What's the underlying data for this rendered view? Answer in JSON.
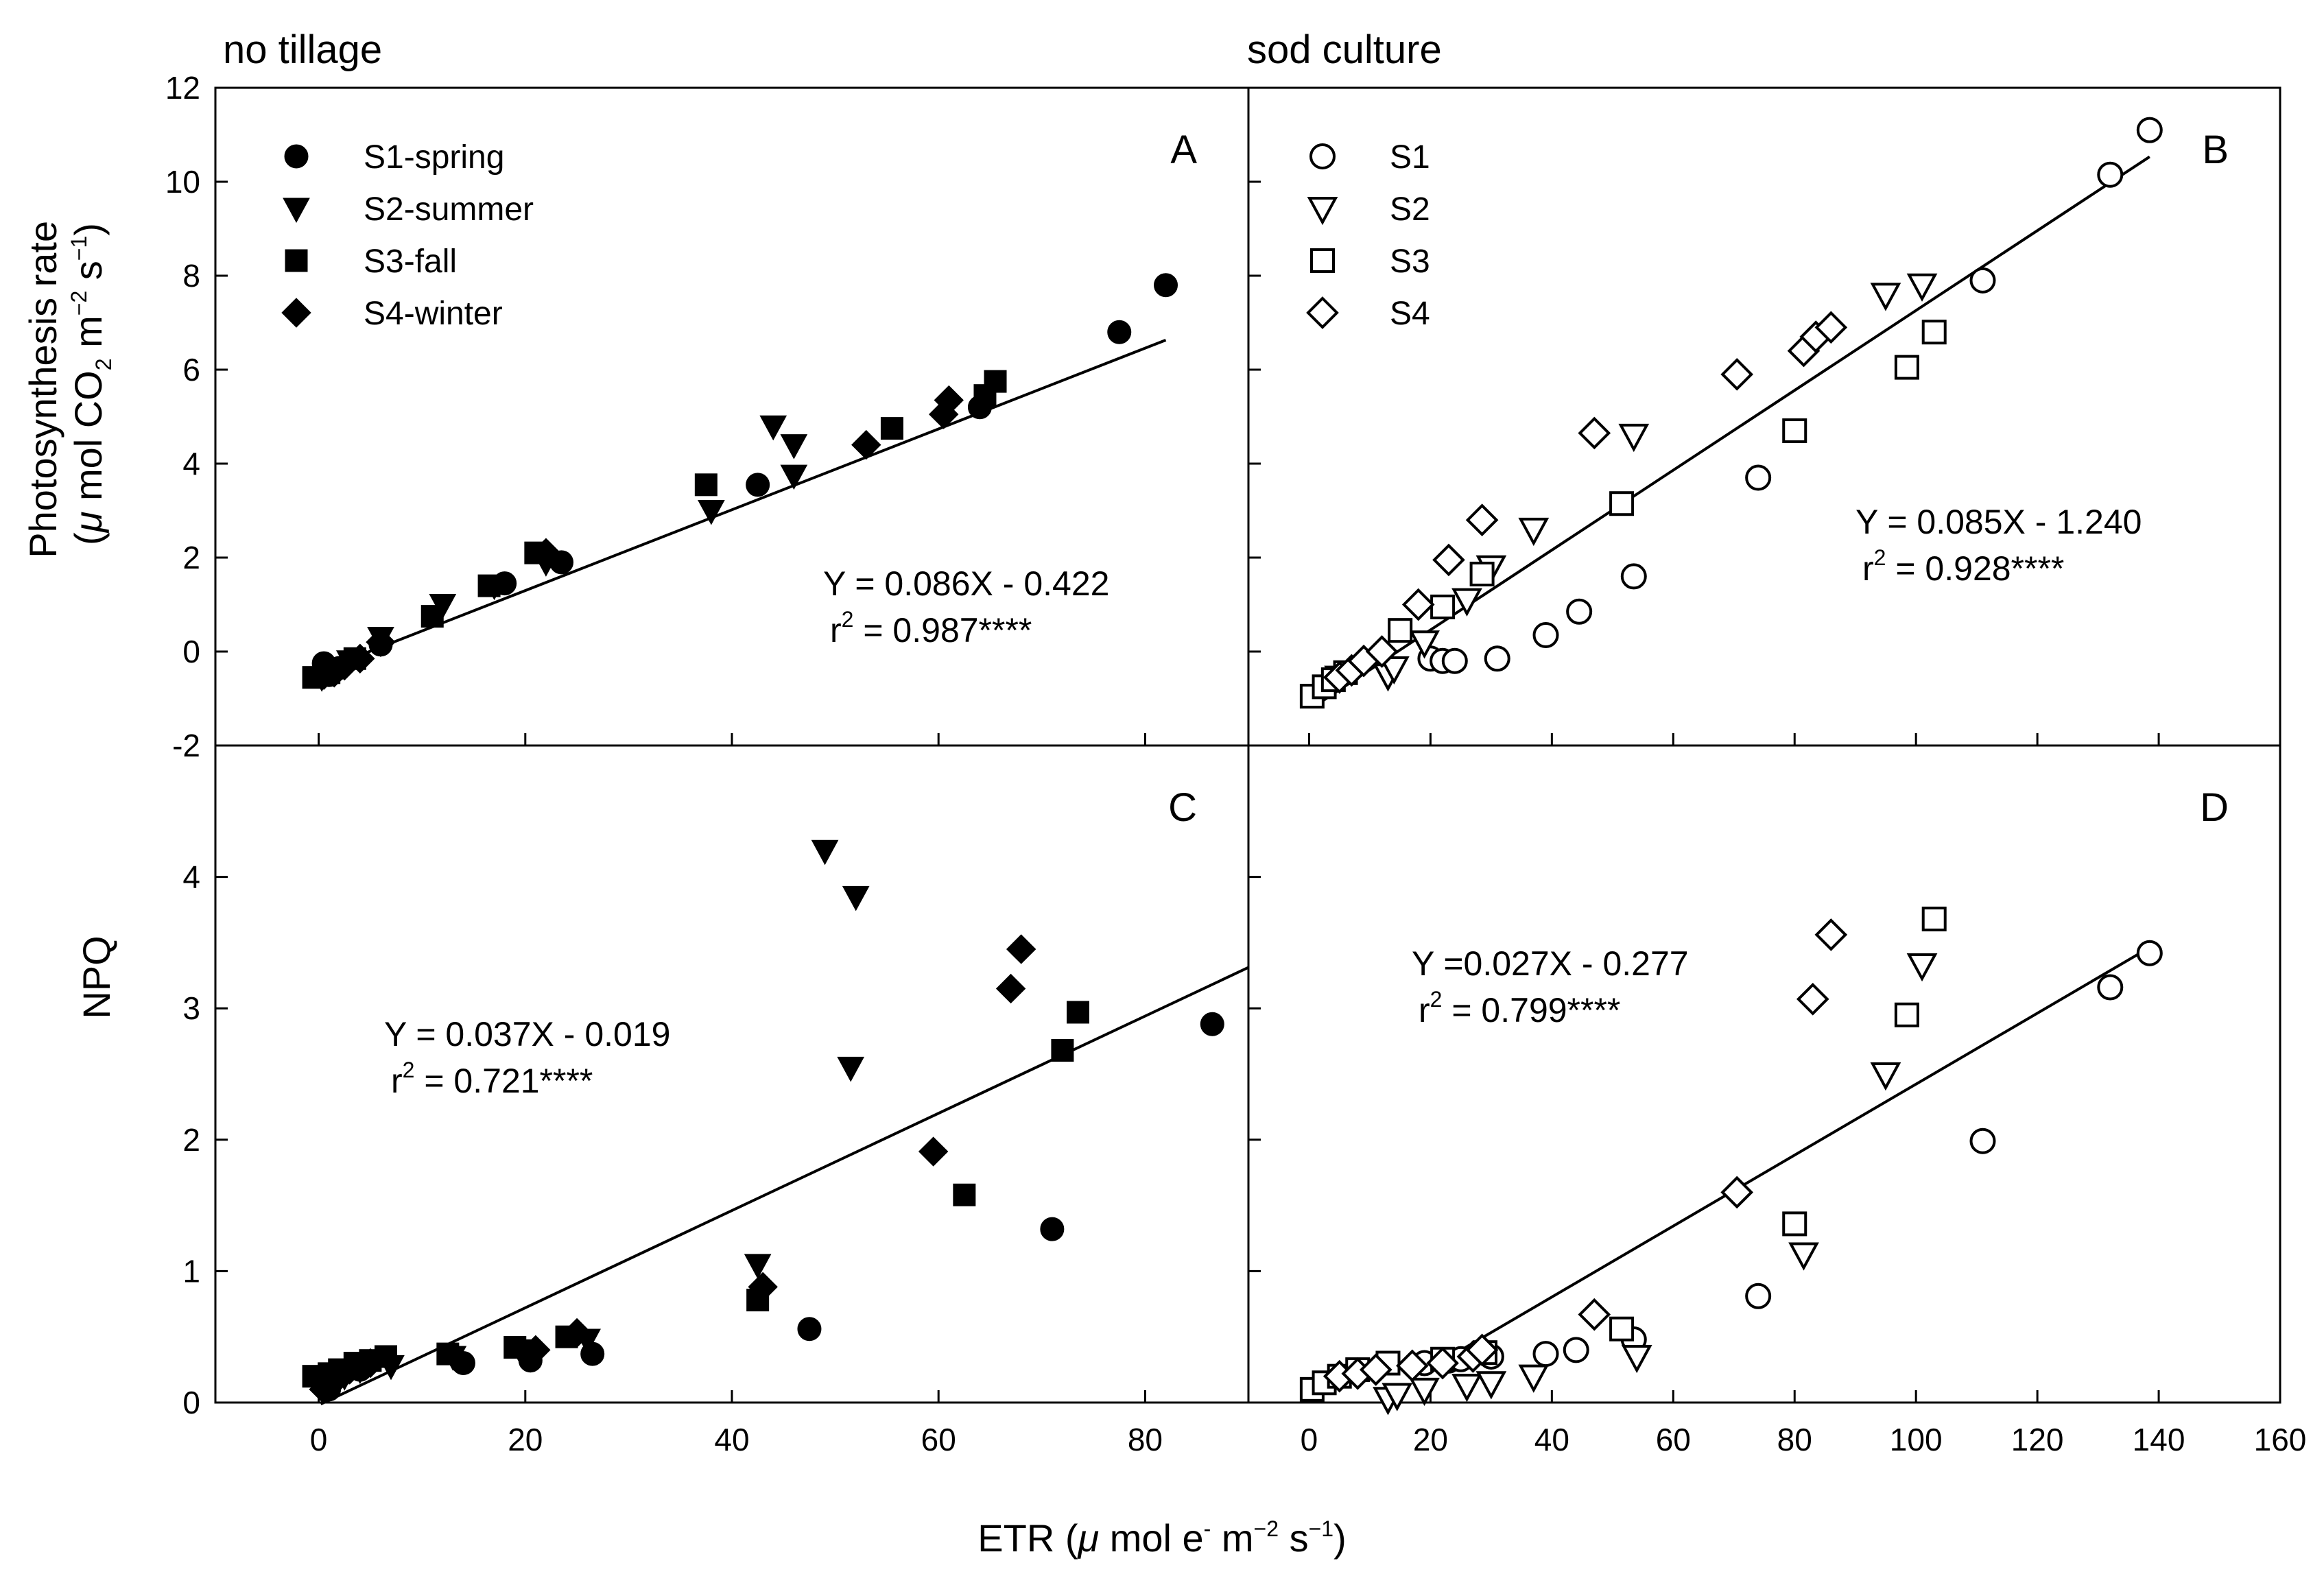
{
  "figure": {
    "column_titles": [
      "no tillage",
      "sod culture"
    ],
    "ylabel_top": {
      "line1": "Photosynthesis rate",
      "open": "(",
      "mu": "μ",
      "unit": " mol CO",
      "sub2": "2",
      "m": " m",
      "exp_m": "−2",
      "s": " s",
      "exp_s": "−1",
      "close": ")"
    },
    "ylabel_bottom": "NPQ",
    "xlabel": {
      "prefix": "ETR (",
      "mu": "μ",
      "unit": " mol e",
      "exp_e": "-",
      "m": " m",
      "exp_m": "−2",
      "s": " s",
      "exp_s": "−1",
      "close": ")"
    }
  },
  "chart_data": [
    {
      "panel": "A",
      "type": "scatter",
      "column": "no tillage",
      "xlim": [
        -10,
        90
      ],
      "ylim": [
        -2,
        12
      ],
      "yticks": [
        -2,
        0,
        2,
        4,
        6,
        8,
        10,
        12
      ],
      "ytick_labels": [
        "-2",
        "0",
        "2",
        "4",
        "6",
        "8",
        "10",
        "12"
      ],
      "filled": true,
      "legend": [
        {
          "name": "S1-spring",
          "marker": "circle"
        },
        {
          "name": "S2-summer",
          "marker": "triangle-down"
        },
        {
          "name": "S3-fall",
          "marker": "square"
        },
        {
          "name": "S4-winter",
          "marker": "diamond"
        }
      ],
      "series": [
        {
          "name": "S1-spring",
          "marker": "circle",
          "points": [
            [
              0.5,
              -0.25
            ],
            [
              1,
              -0.5
            ],
            [
              2,
              -0.35
            ],
            [
              6,
              0.15
            ],
            [
              18,
              1.45
            ],
            [
              23.5,
              1.9
            ],
            [
              42.5,
              3.55
            ],
            [
              64,
              5.2
            ],
            [
              77.5,
              6.8
            ],
            [
              82,
              7.8
            ]
          ]
        },
        {
          "name": "S2-summer",
          "marker": "triangle-down",
          "points": [
            [
              0.3,
              -0.55
            ],
            [
              1.5,
              -0.4
            ],
            [
              3,
              -0.2
            ],
            [
              6,
              0.3
            ],
            [
              12,
              1.0
            ],
            [
              17,
              1.4
            ],
            [
              22,
              1.9
            ],
            [
              38,
              3.0
            ],
            [
              44,
              4.8
            ],
            [
              46,
              4.4
            ],
            [
              46,
              3.75
            ]
          ]
        },
        {
          "name": "S3-fall",
          "marker": "square",
          "points": [
            [
              -0.5,
              -0.55
            ],
            [
              1,
              -0.45
            ],
            [
              3.5,
              -0.15
            ],
            [
              11,
              0.75
            ],
            [
              16.5,
              1.4
            ],
            [
              21,
              2.1
            ],
            [
              37.5,
              3.55
            ],
            [
              55.5,
              4.75
            ],
            [
              64.5,
              5.45
            ],
            [
              65.5,
              5.75
            ]
          ]
        },
        {
          "name": "S4-winter",
          "marker": "diamond",
          "points": [
            [
              0.5,
              -0.5
            ],
            [
              1.5,
              -0.45
            ],
            [
              2.5,
              -0.3
            ],
            [
              4,
              -0.15
            ],
            [
              6,
              0.2
            ],
            [
              22,
              2.1
            ],
            [
              53,
              4.4
            ],
            [
              60.5,
              5.05
            ],
            [
              61,
              5.35
            ]
          ]
        }
      ],
      "fit": {
        "slope": 0.086,
        "intercept": -0.422,
        "x_range": [
          -0.5,
          82
        ]
      },
      "equation": {
        "line1": "Y = 0.086X - 0.422",
        "r_prefix": "r",
        "r_sup": "2",
        "r_value": " = 0.987****"
      }
    },
    {
      "panel": "B",
      "type": "scatter",
      "column": "sod culture",
      "xlim": [
        -10,
        160
      ],
      "ylim": [
        -2,
        12
      ],
      "filled": false,
      "legend": [
        {
          "name": "S1",
          "marker": "circle"
        },
        {
          "name": "S2",
          "marker": "triangle-down"
        },
        {
          "name": "S3",
          "marker": "square"
        },
        {
          "name": "S4",
          "marker": "diamond"
        }
      ],
      "series": [
        {
          "name": "S1",
          "marker": "circle",
          "points": [
            [
              20,
              -0.15
            ],
            [
              22,
              -0.2
            ],
            [
              24,
              -0.2
            ],
            [
              31,
              -0.15
            ],
            [
              39,
              0.35
            ],
            [
              44.5,
              0.85
            ],
            [
              53.5,
              1.6
            ],
            [
              74,
              3.7
            ],
            [
              111,
              7.9
            ],
            [
              132,
              10.15
            ],
            [
              138.5,
              11.1
            ]
          ]
        },
        {
          "name": "S2",
          "marker": "triangle-down",
          "points": [
            [
              5,
              -0.55
            ],
            [
              13,
              -0.5
            ],
            [
              14,
              -0.35
            ],
            [
              19,
              0.2
            ],
            [
              26,
              1.1
            ],
            [
              30,
              1.8
            ],
            [
              37,
              2.6
            ],
            [
              53.5,
              4.6
            ],
            [
              95,
              7.6
            ],
            [
              101,
              7.8
            ]
          ]
        },
        {
          "name": "S3",
          "marker": "square",
          "points": [
            [
              0.5,
              -0.95
            ],
            [
              2.5,
              -0.75
            ],
            [
              4,
              -0.6
            ],
            [
              6,
              -0.45
            ],
            [
              15,
              0.45
            ],
            [
              22,
              0.95
            ],
            [
              28.5,
              1.65
            ],
            [
              51.5,
              3.15
            ],
            [
              80,
              4.7
            ],
            [
              98.5,
              6.05
            ],
            [
              103,
              6.8
            ]
          ]
        },
        {
          "name": "S4",
          "marker": "diamond",
          "points": [
            [
              5,
              -0.55
            ],
            [
              7,
              -0.4
            ],
            [
              9,
              -0.2
            ],
            [
              12,
              0.0
            ],
            [
              18,
              1.0
            ],
            [
              23,
              1.95
            ],
            [
              28.5,
              2.8
            ],
            [
              47,
              4.65
            ],
            [
              70.5,
              5.9
            ],
            [
              81.5,
              6.4
            ],
            [
              83.5,
              6.7
            ],
            [
              86,
              6.9
            ]
          ]
        }
      ],
      "fit": {
        "slope": 0.085,
        "intercept": -1.24,
        "x_range": [
          1,
          138.5
        ]
      },
      "equation": {
        "line1": "Y = 0.085X - 1.240",
        "r_prefix": "r",
        "r_sup": "2",
        "r_value": " = 0.928****"
      },
      "panel_title": "B"
    },
    {
      "panel": "C",
      "type": "scatter",
      "column": "no tillage",
      "xlim": [
        -10,
        90
      ],
      "ylim": [
        0,
        5
      ],
      "yticks": [
        0,
        1,
        2,
        3,
        4
      ],
      "ytick_labels": [
        "0",
        "1",
        "2",
        "3",
        "4"
      ],
      "xticks": [
        0,
        20,
        40,
        60,
        80
      ],
      "xtick_labels": [
        "0",
        "20",
        "40",
        "60",
        "80"
      ],
      "filled": true,
      "series": [
        {
          "name": "S1-spring",
          "marker": "circle",
          "points": [
            [
              0.5,
              0.15
            ],
            [
              1,
              0.1
            ],
            [
              2,
              0.2
            ],
            [
              4,
              0.25
            ],
            [
              14,
              0.3
            ],
            [
              20.5,
              0.32
            ],
            [
              26.5,
              0.37
            ],
            [
              47.5,
              0.56
            ],
            [
              71,
              1.32
            ],
            [
              86.5,
              2.88
            ]
          ]
        },
        {
          "name": "S2-summer",
          "marker": "triangle-down",
          "points": [
            [
              0.5,
              0.12
            ],
            [
              1.5,
              0.15
            ],
            [
              2.5,
              0.2
            ],
            [
              4,
              0.25
            ],
            [
              7,
              0.28
            ],
            [
              13,
              0.35
            ],
            [
              19.5,
              0.4
            ],
            [
              26,
              0.48
            ],
            [
              42.5,
              1.05
            ],
            [
              49,
              4.2
            ],
            [
              51.5,
              2.55
            ],
            [
              52,
              3.85
            ]
          ]
        },
        {
          "name": "S3-fall",
          "marker": "square",
          "points": [
            [
              -0.5,
              0.2
            ],
            [
              1,
              0.22
            ],
            [
              2,
              0.25
            ],
            [
              3.5,
              0.3
            ],
            [
              5,
              0.32
            ],
            [
              6.5,
              0.35
            ],
            [
              12.5,
              0.37
            ],
            [
              19,
              0.42
            ],
            [
              24,
              0.5
            ],
            [
              42.5,
              0.78
            ],
            [
              62.5,
              1.58
            ],
            [
              72,
              2.68
            ],
            [
              73.5,
              2.97
            ]
          ]
        },
        {
          "name": "S4-winter",
          "marker": "diamond",
          "points": [
            [
              0.5,
              0.1
            ],
            [
              1,
              0.15
            ],
            [
              2,
              0.2
            ],
            [
              3,
              0.25
            ],
            [
              5,
              0.3
            ],
            [
              21,
              0.4
            ],
            [
              25,
              0.53
            ],
            [
              43,
              0.88
            ],
            [
              59.5,
              1.91
            ],
            [
              67,
              3.15
            ],
            [
              68,
              3.45
            ]
          ]
        }
      ],
      "fit": {
        "slope": 0.037,
        "intercept": -0.019,
        "x_range": [
          0.2,
          90
        ]
      },
      "equation": {
        "line1": "Y = 0.037X - 0.019",
        "r_prefix": "r",
        "r_sup": "2",
        "r_value": " = 0.721****"
      }
    },
    {
      "panel": "D",
      "type": "scatter",
      "column": "sod culture",
      "xlim": [
        -10,
        160
      ],
      "ylim": [
        0,
        5
      ],
      "xticks": [
        0,
        20,
        40,
        60,
        80,
        100,
        120,
        140,
        160
      ],
      "xtick_labels": [
        "0",
        "20",
        "40",
        "60",
        "80",
        "100",
        "120",
        "140",
        "160"
      ],
      "filled": false,
      "series": [
        {
          "name": "S1",
          "marker": "circle",
          "points": [
            [
              19,
              0.3
            ],
            [
              23,
              0.32
            ],
            [
              25,
              0.33
            ],
            [
              30,
              0.35
            ],
            [
              39,
              0.37
            ],
            [
              44,
              0.4
            ],
            [
              53.5,
              0.48
            ],
            [
              74,
              0.81
            ],
            [
              111,
              1.99
            ],
            [
              132,
              3.16
            ],
            [
              138.5,
              3.42
            ]
          ]
        },
        {
          "name": "S2",
          "marker": "triangle-down",
          "points": [
            [
              13,
              0.03
            ],
            [
              14.5,
              0.06
            ],
            [
              19,
              0.1
            ],
            [
              26,
              0.13
            ],
            [
              30,
              0.15
            ],
            [
              37,
              0.2
            ],
            [
              54,
              0.35
            ],
            [
              81.5,
              1.13
            ],
            [
              95,
              2.5
            ],
            [
              101,
              3.33
            ]
          ]
        },
        {
          "name": "S3",
          "marker": "square",
          "points": [
            [
              0.5,
              0.1
            ],
            [
              2.5,
              0.15
            ],
            [
              5,
              0.2
            ],
            [
              8,
              0.25
            ],
            [
              13,
              0.3
            ],
            [
              22,
              0.33
            ],
            [
              29,
              0.38
            ],
            [
              51.5,
              0.56
            ],
            [
              80,
              1.36
            ],
            [
              98.5,
              2.95
            ],
            [
              103,
              3.68
            ]
          ]
        },
        {
          "name": "S4",
          "marker": "diamond",
          "points": [
            [
              5,
              0.2
            ],
            [
              8,
              0.22
            ],
            [
              11,
              0.25
            ],
            [
              17,
              0.28
            ],
            [
              22,
              0.3
            ],
            [
              27,
              0.35
            ],
            [
              28.5,
              0.4
            ],
            [
              47,
              0.67
            ],
            [
              70.5,
              1.6
            ],
            [
              83,
              3.07
            ],
            [
              86,
              3.56
            ]
          ]
        }
      ],
      "fit": {
        "slope": 0.027,
        "intercept": -0.277,
        "x_range": [
          19,
          138.5
        ]
      },
      "equation": {
        "line1": "Y =0.027X - 0.277",
        "r_prefix": "r",
        "r_sup": "2",
        "r_value": " = 0.799****"
      }
    }
  ]
}
